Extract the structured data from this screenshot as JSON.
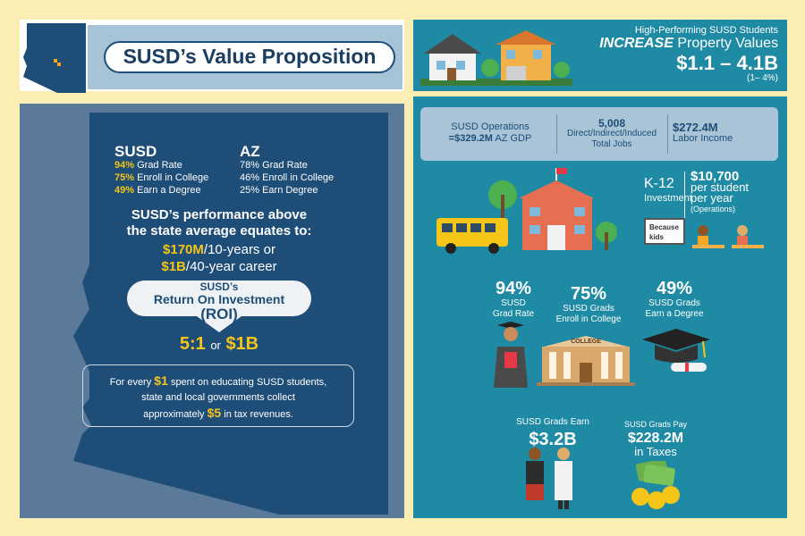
{
  "left": {
    "title": "SUSD’s Value Proposition",
    "susd_heading": "SUSD",
    "az_heading": "AZ",
    "susd_stats": [
      {
        "value": "94%",
        "label": "Grad Rate"
      },
      {
        "value": "75%",
        "label": "Enroll in College"
      },
      {
        "value": "49%",
        "label": "Earn a Degree"
      }
    ],
    "az_stats": [
      "78% Grad Rate",
      "46% Enroll in College",
      "25% Earn Degree"
    ],
    "performance_line1": "SUSD’s performance above",
    "performance_line2": "the state average equates to:",
    "value1_amount": "$170M",
    "value1_rest": "/10-years or",
    "value2_amount": "$1B",
    "value2_rest": "/40-year career",
    "roi_line1": "SUSD’s",
    "roi_line2": "Return On Investment",
    "roi_line3": "(ROI)",
    "roi_ratio": "5:1",
    "roi_or": "or",
    "roi_amount": "$1B",
    "box_line1_pre": "For every",
    "box_line1_amount": "$1",
    "box_line1_post": "spent on educating SUSD students,",
    "box_line2": "state and local governments collect",
    "box_line3_pre": "approximately",
    "box_line3_amount": "$5",
    "box_line3_post": "in tax revenues."
  },
  "right": {
    "prop_line1": "High-Performing SUSD Students",
    "prop_increase": "INCREASE",
    "prop_rest": "Property Values",
    "prop_value": "$1.1 – 4.1B",
    "prop_pct": "(1– 4%)",
    "ops_label": "SUSD Operations",
    "ops_value": "=$329.2M",
    "ops_suffix": "AZ GDP",
    "jobs_value": "5,008",
    "jobs_label1": "Direct/Indirect/Induced",
    "jobs_label2": "Total Jobs",
    "labor_value": "$272.4M",
    "labor_label": "Labor Income",
    "k12_line1": "K-12",
    "k12_line2": "Investment",
    "per_student_value": "$10,700",
    "per_student_line1": "per student",
    "per_student_line2": "per year",
    "per_student_line3": "(Operations)",
    "sign_text1": "Because",
    "sign_text2": "kids",
    "grad_rate_value": "94%",
    "grad_rate_line1": "SUSD",
    "grad_rate_line2": "Grad Rate",
    "enroll_value": "75%",
    "enroll_line1": "SUSD Grads",
    "enroll_line2": "Enroll in College",
    "college_sign": "COLLEGE",
    "degree_value": "49%",
    "degree_line1": "SUSD Grads",
    "degree_line2": "Earn a Degree",
    "earn_label": "SUSD Grads Earn",
    "earn_value": "$3.2B",
    "tax_label": "SUSD Grads Pay",
    "tax_value": "$228.2M",
    "tax_suffix": "in Taxes"
  },
  "colors": {
    "background": "#fbeeb4",
    "navy": "#1e4d78",
    "teal": "#1e8aa3",
    "gold": "#f5c518"
  },
  "icons": [
    "arizona-map-icon",
    "house-icon",
    "school-bus-icon",
    "school-building-icon",
    "graduate-icon",
    "college-building-icon",
    "grad-cap-icon",
    "professionals-icon",
    "money-stack-icon"
  ]
}
